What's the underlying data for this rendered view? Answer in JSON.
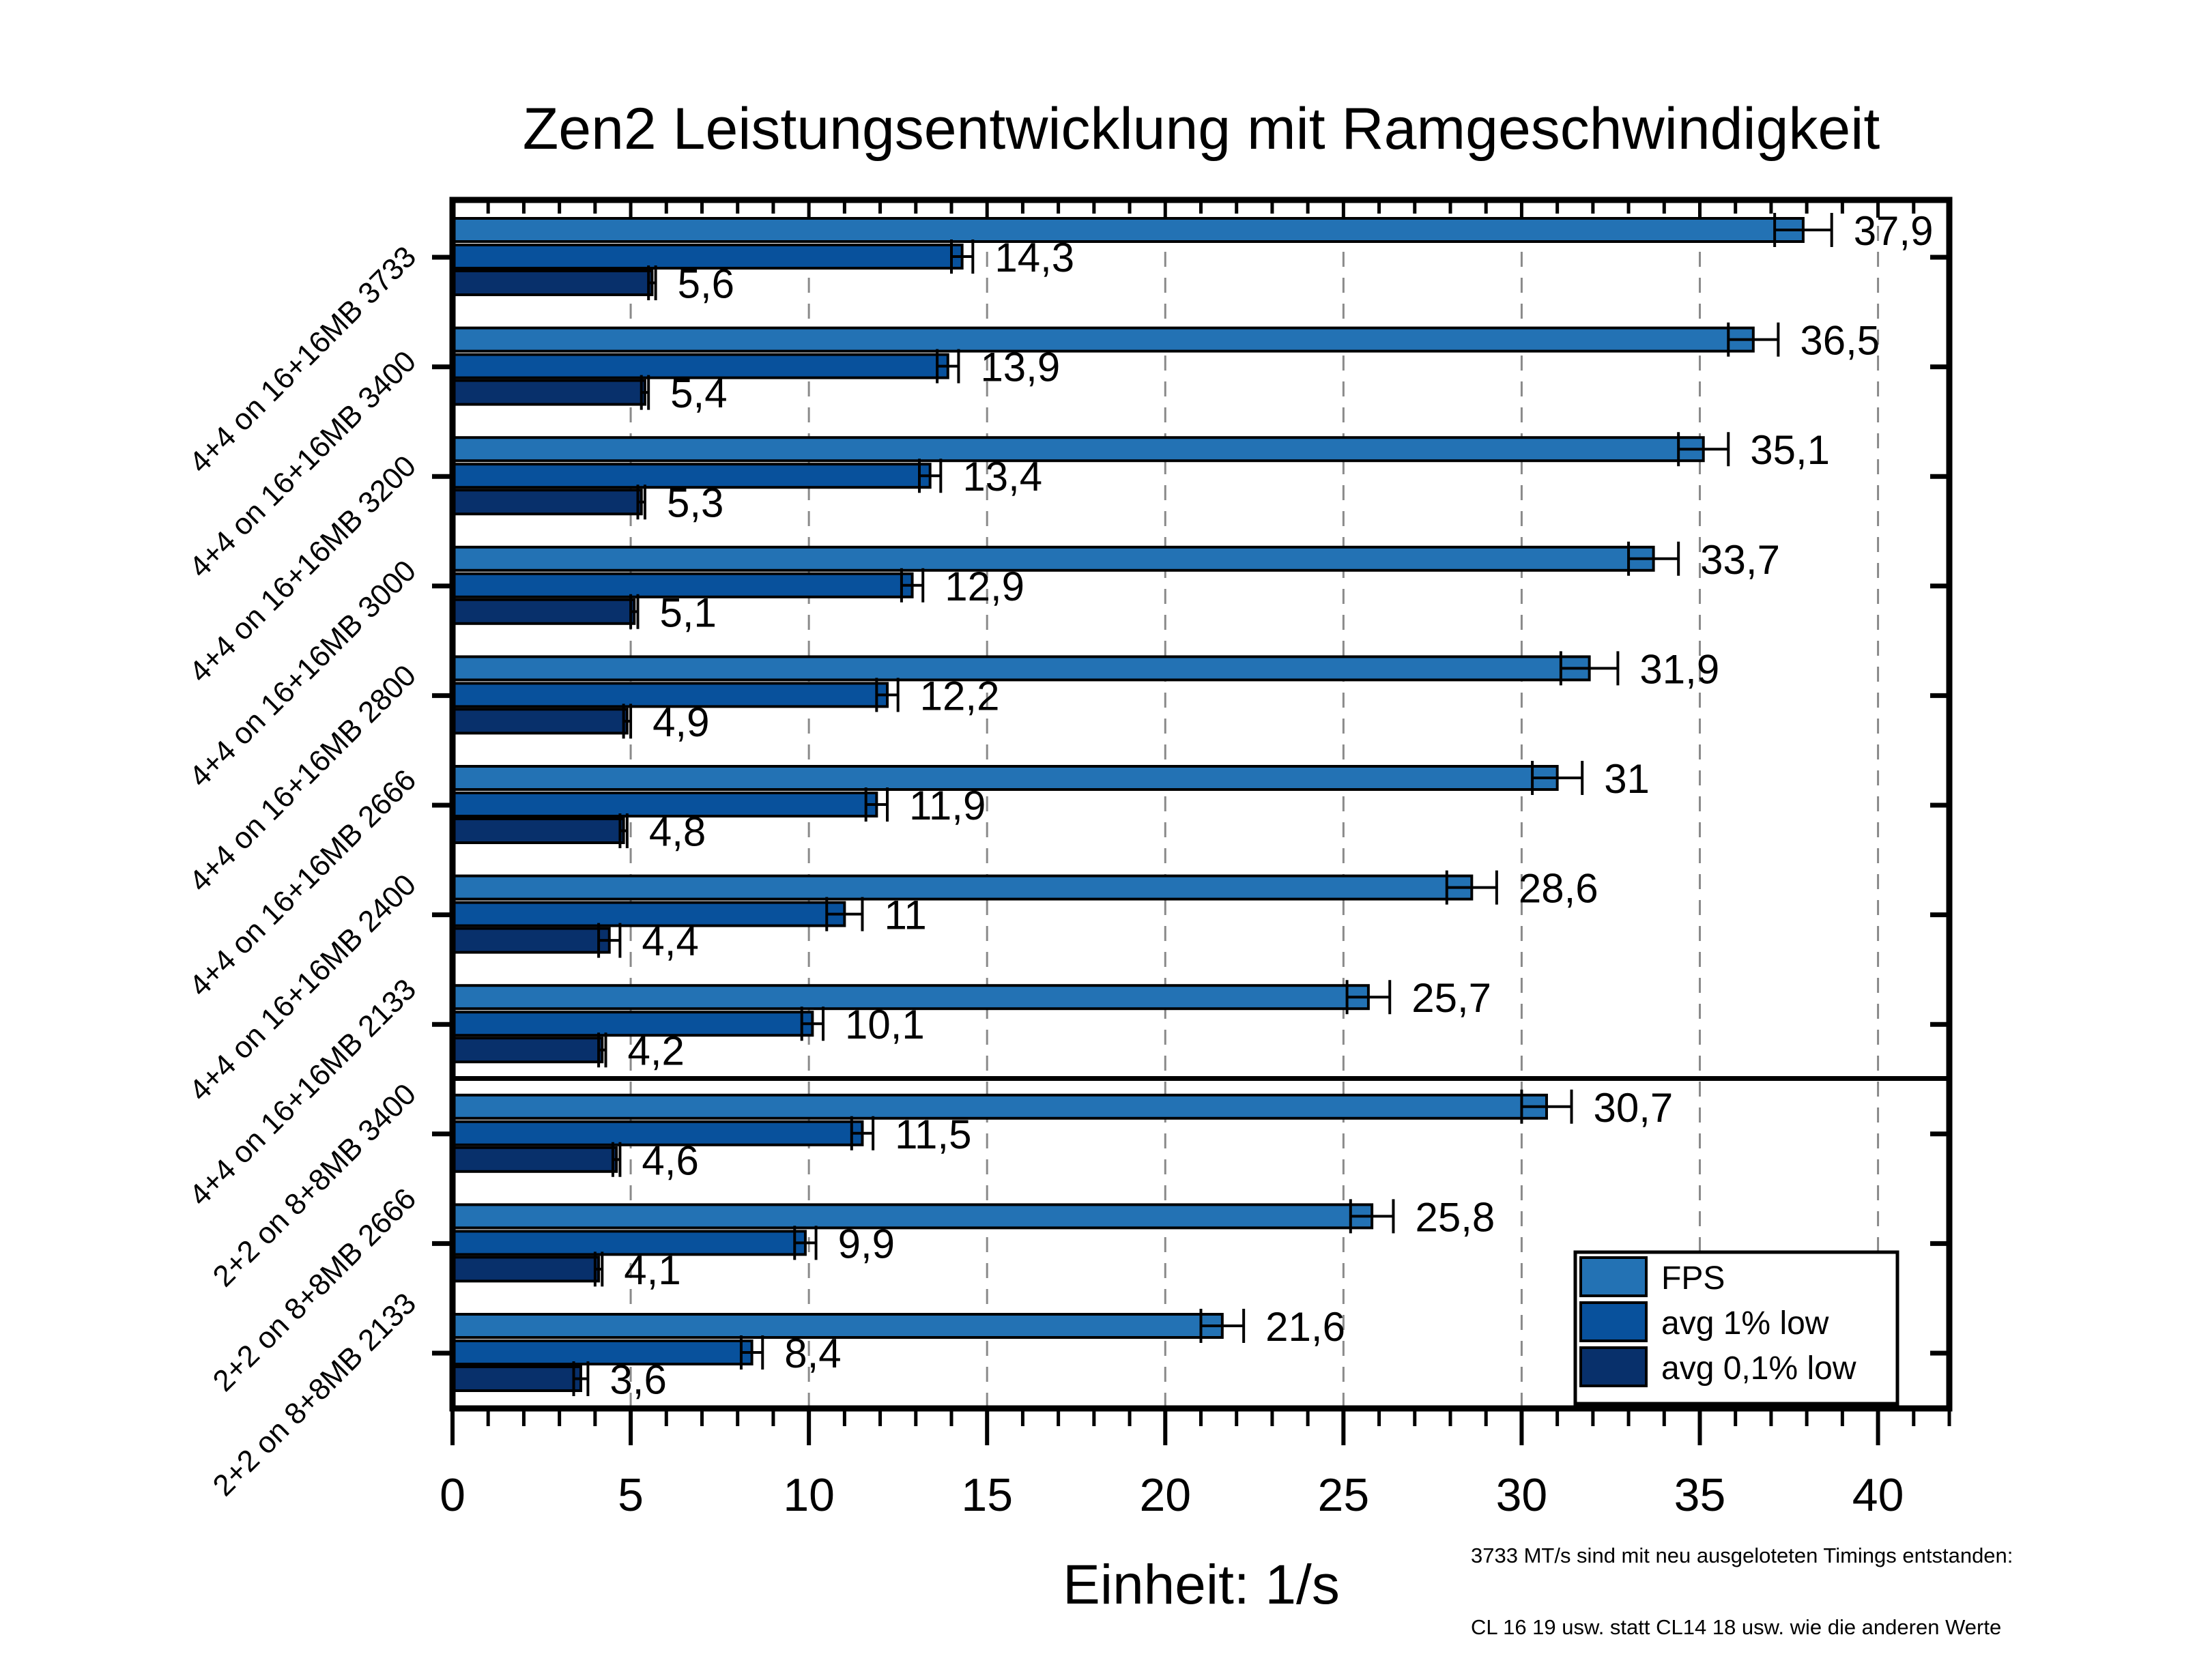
{
  "chart_data": {
    "type": "bar",
    "orientation": "horizontal",
    "title": "Zen2 Leistungsentwicklung mit Ramgeschwindigkeit",
    "xlabel": "Einheit: 1/s",
    "ylabel": "",
    "xlim": [
      0,
      42
    ],
    "xticks": [
      0,
      5,
      10,
      15,
      20,
      25,
      30,
      35,
      40
    ],
    "xtick_labels": [
      "0",
      "5",
      "10",
      "15",
      "20",
      "25",
      "30",
      "35",
      "40"
    ],
    "minor_tick_step": 1,
    "grid": "vertical dashed at major ticks",
    "categories": [
      "4+4 on 16+16MB 3733",
      "4+4 on 16+16MB 3400",
      "4+4 on 16+16MB 3200",
      "4+4 on 16+16MB 3000",
      "4+4 on 16+16MB 2800",
      "4+4 on 16+16MB 2666",
      "4+4 on 16+16MB 2400",
      "4+4 on 16+16MB 2133",
      "2+2 on 8+8MB 3400",
      "2+2 on 8+8MB 2666",
      "2+2 on 8+8MB 2133"
    ],
    "group_separator_after_index": 7,
    "series": [
      {
        "name": "FPS",
        "color": "#2372b4",
        "values": [
          37.9,
          36.5,
          35.1,
          33.7,
          31.9,
          31,
          28.6,
          25.7,
          30.7,
          25.8,
          21.6
        ],
        "labels": [
          "37,9",
          "36,5",
          "35,1",
          "33,7",
          "31,9",
          "31",
          "28,6",
          "25,7",
          "30,7",
          "25,8",
          "21,6"
        ],
        "errors": [
          0.8,
          0.7,
          0.7,
          0.7,
          0.8,
          0.7,
          0.7,
          0.6,
          0.7,
          0.6,
          0.6
        ]
      },
      {
        "name": "avg 1% low",
        "color": "#08519c",
        "values": [
          14.3,
          13.9,
          13.4,
          12.9,
          12.2,
          11.9,
          11,
          10.1,
          11.5,
          9.9,
          8.4
        ],
        "labels": [
          "14,3",
          "13,9",
          "13,4",
          "12,9",
          "12,2",
          "11,9",
          "11",
          "10,1",
          "11,5",
          "9,9",
          "8,4"
        ],
        "errors": [
          0.3,
          0.3,
          0.3,
          0.3,
          0.3,
          0.3,
          0.5,
          0.3,
          0.3,
          0.3,
          0.3
        ]
      },
      {
        "name": "avg 0,1% low",
        "color": "#08306b",
        "values": [
          5.6,
          5.4,
          5.3,
          5.1,
          4.9,
          4.8,
          4.4,
          4.2,
          4.6,
          4.1,
          3.6
        ],
        "labels": [
          "5,6",
          "5,4",
          "5,3",
          "5,1",
          "4,9",
          "4,8",
          "4,4",
          "4,2",
          "4,6",
          "4,1",
          "3,6"
        ],
        "errors": [
          0.1,
          0.1,
          0.1,
          0.1,
          0.1,
          0.1,
          0.3,
          0.1,
          0.1,
          0.1,
          0.2
        ]
      }
    ],
    "legend": {
      "placement": "bottom-right",
      "entries": [
        "FPS",
        "avg 1% low",
        "avg 0,1% low"
      ]
    },
    "annotations": [
      "3733 MT/s sind mit neu ausgeloteten Timings entstanden:",
      "CL 16 19 usw. statt CL14 18 usw. wie die anderen Werte"
    ]
  }
}
